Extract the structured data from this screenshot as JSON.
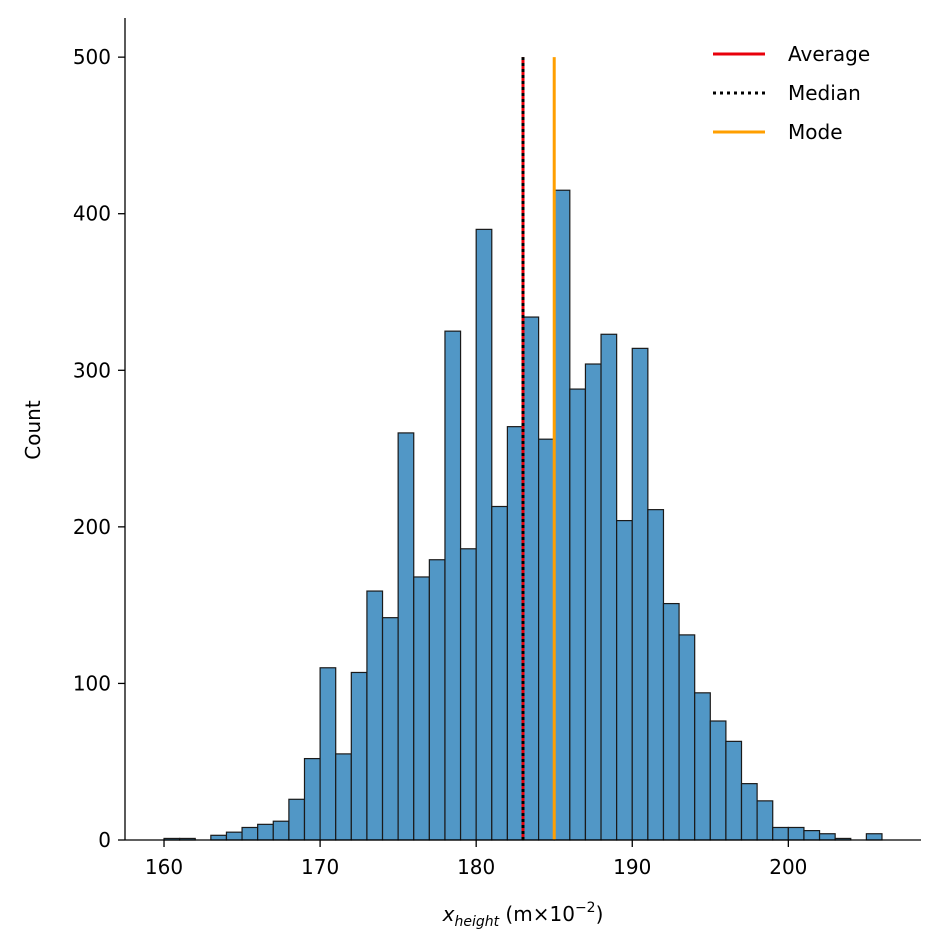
{
  "chart_data": {
    "type": "bar",
    "xlabel_var": "x",
    "xlabel_sub": "height",
    "xlabel_unit_pre": " (m×10",
    "xlabel_unit_exp": "−2",
    "xlabel_unit_post": ")",
    "ylabel": "Count",
    "xlim": [
      157.5,
      208.5
    ],
    "ylim": [
      0,
      525
    ],
    "xticks": [
      160,
      170,
      180,
      190,
      200
    ],
    "yticks": [
      0,
      100,
      200,
      300,
      400,
      500
    ],
    "bin_start": 160.0,
    "bin_width": 1.0,
    "counts": [
      1,
      1,
      0,
      3,
      5,
      8,
      10,
      12,
      26,
      52,
      110,
      55,
      107,
      159,
      142,
      260,
      168,
      179,
      325,
      186,
      390,
      213,
      264,
      334,
      256,
      415,
      288,
      304,
      323,
      204,
      314,
      211,
      151,
      131,
      94,
      76,
      63,
      36,
      25,
      8,
      8,
      6,
      4,
      1,
      0,
      4
    ],
    "reference_lines": [
      {
        "name": "Average",
        "x": 183.0,
        "y_max": 500,
        "color": "#e8000b",
        "style": "solid"
      },
      {
        "name": "Median",
        "x": 183.0,
        "y_max": 500,
        "color": "#000000",
        "style": "dotted"
      },
      {
        "name": "Mode",
        "x": 185.0,
        "y_max": 500,
        "color": "#ff9f00",
        "style": "solid"
      }
    ],
    "legend": {
      "placement": "top-right",
      "entries": [
        "Average",
        "Median",
        "Mode"
      ]
    },
    "bar_color": "#5197c6",
    "grid": false
  }
}
